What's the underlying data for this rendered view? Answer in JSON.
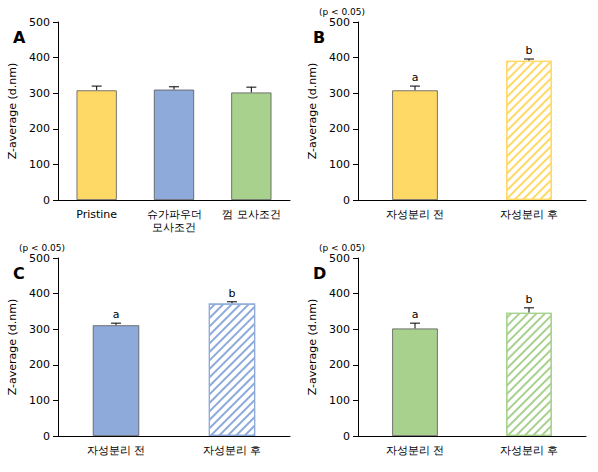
{
  "chart_data": [
    {
      "type": "bar",
      "title": "A",
      "y_label": "Z-average (d.nm)",
      "categories": [
        "Pristine",
        "슈가파우더\n모사조건",
        "껌 모사조건"
      ],
      "values": [
        308,
        310,
        302
      ],
      "errors": [
        12,
        8,
        15
      ],
      "colors": [
        "#ffd966",
        "#8eaadb",
        "#a9d18e"
      ],
      "ylim": [
        0,
        500
      ],
      "yticks": [
        0,
        100,
        200,
        300,
        400,
        500
      ],
      "grid": false
    },
    {
      "type": "bar",
      "title": "B",
      "y_label": "Z-average (d.nm)",
      "annotation": "(p < 0.05)",
      "categories": [
        "자성분리 전",
        "자성분리 후"
      ],
      "values": [
        308,
        391
      ],
      "errors": [
        12,
        5
      ],
      "letters": [
        "a",
        "b"
      ],
      "colors": [
        "#ffd966",
        "#ffd966"
      ],
      "ylim": [
        0,
        500
      ],
      "yticks": [
        0,
        100,
        200,
        300,
        400,
        500
      ],
      "grid": false
    },
    {
      "type": "bar",
      "title": "C",
      "y_label": "Z-average (d.nm)",
      "annotation": "(p < 0.05)",
      "categories": [
        "자성분리 전",
        "자성분리 후"
      ],
      "values": [
        311,
        372
      ],
      "errors": [
        6,
        5
      ],
      "letters": [
        "a",
        "b"
      ],
      "colors": [
        "#8eaadb",
        "#8eaadb"
      ],
      "ylim": [
        0,
        500
      ],
      "yticks": [
        0,
        100,
        200,
        300,
        400,
        500
      ],
      "grid": false
    },
    {
      "type": "bar",
      "title": "D",
      "y_label": "Z-average (d.nm)",
      "annotation": "(p < 0.05)",
      "categories": [
        "자성분리 전",
        "자성분리 후"
      ],
      "values": [
        302,
        346
      ],
      "errors": [
        15,
        14
      ],
      "letters": [
        "a",
        "b"
      ],
      "colors": [
        "#a9d18e",
        "#a9d18e"
      ],
      "ylim": [
        0,
        500
      ],
      "yticks": [
        0,
        100,
        200,
        300,
        400,
        500
      ],
      "grid": false
    }
  ]
}
